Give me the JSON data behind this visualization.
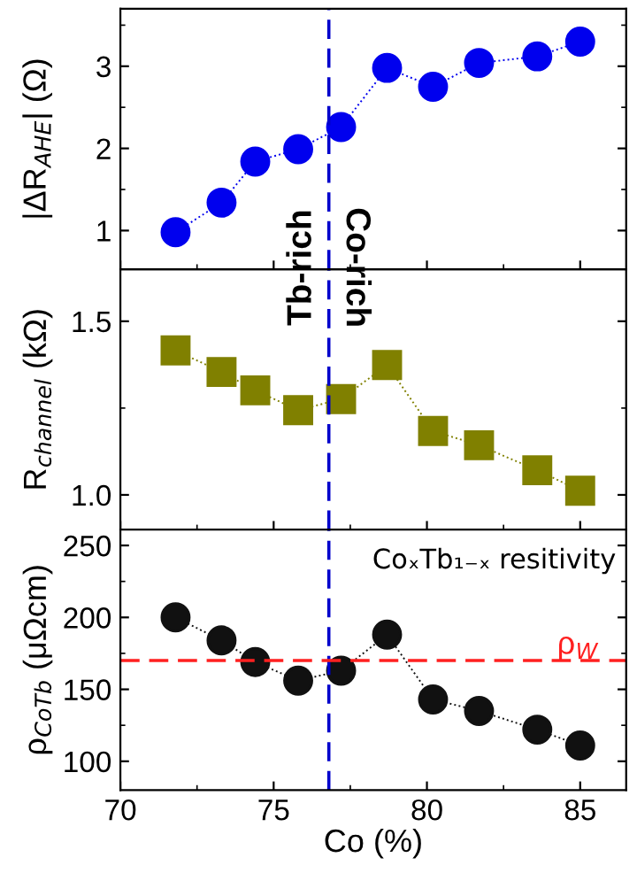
{
  "chart_data": [
    {
      "type": "line",
      "marker": "circle",
      "ylabel": "|ΔR$_{AHE}$| (Ω)",
      "x": [
        71.8,
        73.3,
        74.4,
        75.8,
        77.2,
        78.7,
        80.2,
        81.7,
        83.6,
        85.0
      ],
      "series": [
        {
          "color": "#0000ee",
          "values": [
            0.98,
            1.34,
            1.84,
            1.99,
            2.26,
            2.98,
            2.75,
            3.04,
            3.12,
            3.3
          ]
        }
      ],
      "xlim": [
        70,
        86.5
      ],
      "xticks": [
        70,
        75,
        80,
        85
      ],
      "ylim": [
        0.53,
        3.7
      ],
      "yticks": [
        1,
        2,
        3
      ],
      "tick_labels": "y",
      "line_style": "dotted",
      "grid": false,
      "legend": false,
      "ref_lines": [
        {
          "axis": "x",
          "value": 76.8,
          "color": "#0000cc",
          "line_style": "dashed"
        }
      ],
      "annotations": [
        "Tb-rich",
        "Co-rich"
      ]
    },
    {
      "type": "line",
      "marker": "square",
      "ylabel": "R$_{channel}$ (kΩ)",
      "x": [
        71.8,
        73.3,
        74.4,
        75.8,
        77.2,
        78.7,
        80.2,
        81.7,
        83.6,
        85.0
      ],
      "series": [
        {
          "color": "#808000",
          "values": [
            1.416,
            1.354,
            1.301,
            1.244,
            1.276,
            1.374,
            1.184,
            1.143,
            1.071,
            1.012
          ]
        }
      ],
      "xlim": [
        70,
        86.5
      ],
      "xticks": [
        70,
        75,
        80,
        85
      ],
      "ylim": [
        0.9,
        1.65
      ],
      "yticks": [
        {
          "value": 1.0,
          "label": "1.0"
        },
        {
          "value": 1.5,
          "label": "1.5"
        }
      ],
      "tick_labels": "y",
      "line_style": "dotted",
      "grid": false,
      "legend": false,
      "ref_lines": [
        {
          "axis": "x",
          "value": 76.8,
          "color": "#0000cc",
          "line_style": "dashed"
        }
      ]
    },
    {
      "type": "line",
      "marker": "circle",
      "ylabel": "ρ$_{CoTb}$ (μΩcm)",
      "xlabel": "Co (%)",
      "x": [
        71.8,
        73.3,
        74.4,
        75.8,
        77.2,
        78.7,
        80.2,
        81.7,
        83.6,
        85.0
      ],
      "series": [
        {
          "color": "#111111",
          "values": [
            200,
            184,
            169,
            156,
            163,
            188,
            143,
            135,
            122,
            111
          ]
        }
      ],
      "xlim": [
        70,
        86.5
      ],
      "xticks": [
        70,
        75,
        80,
        85
      ],
      "ylim": [
        80,
        261
      ],
      "yticks": [
        100,
        150,
        200,
        250
      ],
      "line_style": "dotted",
      "grid": false,
      "legend": false,
      "ref_lines": [
        {
          "axis": "x",
          "value": 76.8,
          "color": "#0000cc",
          "line_style": "dashed"
        },
        {
          "axis": "y",
          "value": 170,
          "label": "ρ$_{W}$",
          "color": "#ff2020",
          "line_style": "dashed"
        }
      ],
      "annotations": [
        "CoₓTb₁₋ₓ resitivity"
      ]
    }
  ]
}
